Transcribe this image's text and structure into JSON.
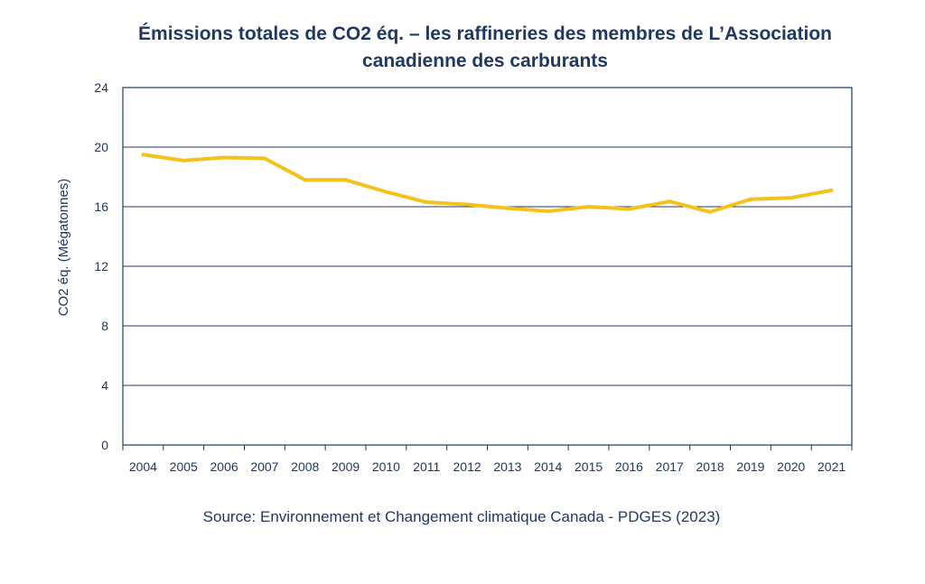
{
  "chart_data": {
    "type": "line",
    "title_line1": "Émissions totales de CO2 éq. – les raffineries des membres de L’Association",
    "title_line2": "canadienne des carburants",
    "xlabel": "",
    "ylabel": "CO2 éq. (Mégatonnes)",
    "ylim": [
      0,
      24
    ],
    "yticks": [
      "0",
      "4",
      "8",
      "12",
      "16",
      "20",
      "24"
    ],
    "grid": true,
    "categories": [
      "2004",
      "2005",
      "2006",
      "2007",
      "2008",
      "2009",
      "2010",
      "2011",
      "2012",
      "2013",
      "2014",
      "2015",
      "2016",
      "2017",
      "2018",
      "2019",
      "2020",
      "2021"
    ],
    "series": [
      {
        "color": "#f5c21b",
        "values": [
          19.5,
          19.1,
          19.3,
          19.25,
          17.8,
          17.8,
          17.0,
          16.3,
          16.15,
          15.9,
          15.7,
          16.0,
          15.85,
          16.35,
          15.65,
          16.5,
          16.6,
          17.1
        ]
      }
    ],
    "source": "Source: Environnement et Changement climatique Canada - PDGES (2023)"
  },
  "colors": {
    "text": "#1f3864",
    "frame": "#1f3864",
    "grid": "#1f3864",
    "line": "#f5c21b"
  }
}
